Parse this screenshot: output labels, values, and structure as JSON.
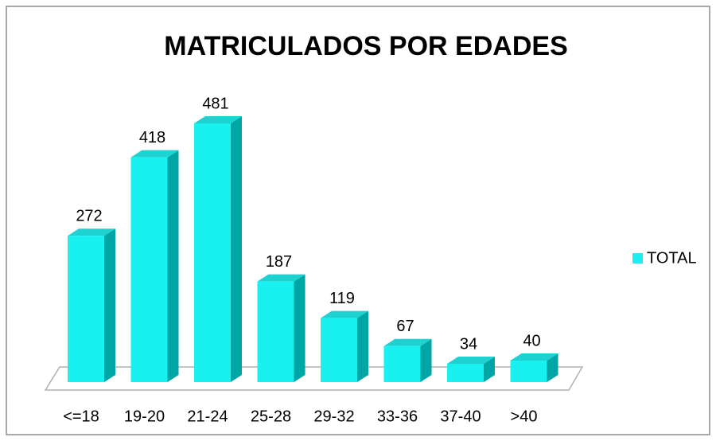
{
  "chart_data": {
    "type": "bar3d",
    "title": "MATRICULADOS POR EDADES",
    "categories": [
      "<=18",
      "19-20",
      "21-24",
      "25-28",
      "29-32",
      "33-36",
      "37-40",
      ">40"
    ],
    "series": [
      {
        "name": "TOTAL",
        "color": "#19f0f0",
        "values": [
          272,
          418,
          481,
          187,
          119,
          67,
          34,
          40
        ]
      }
    ],
    "legend": "right"
  }
}
